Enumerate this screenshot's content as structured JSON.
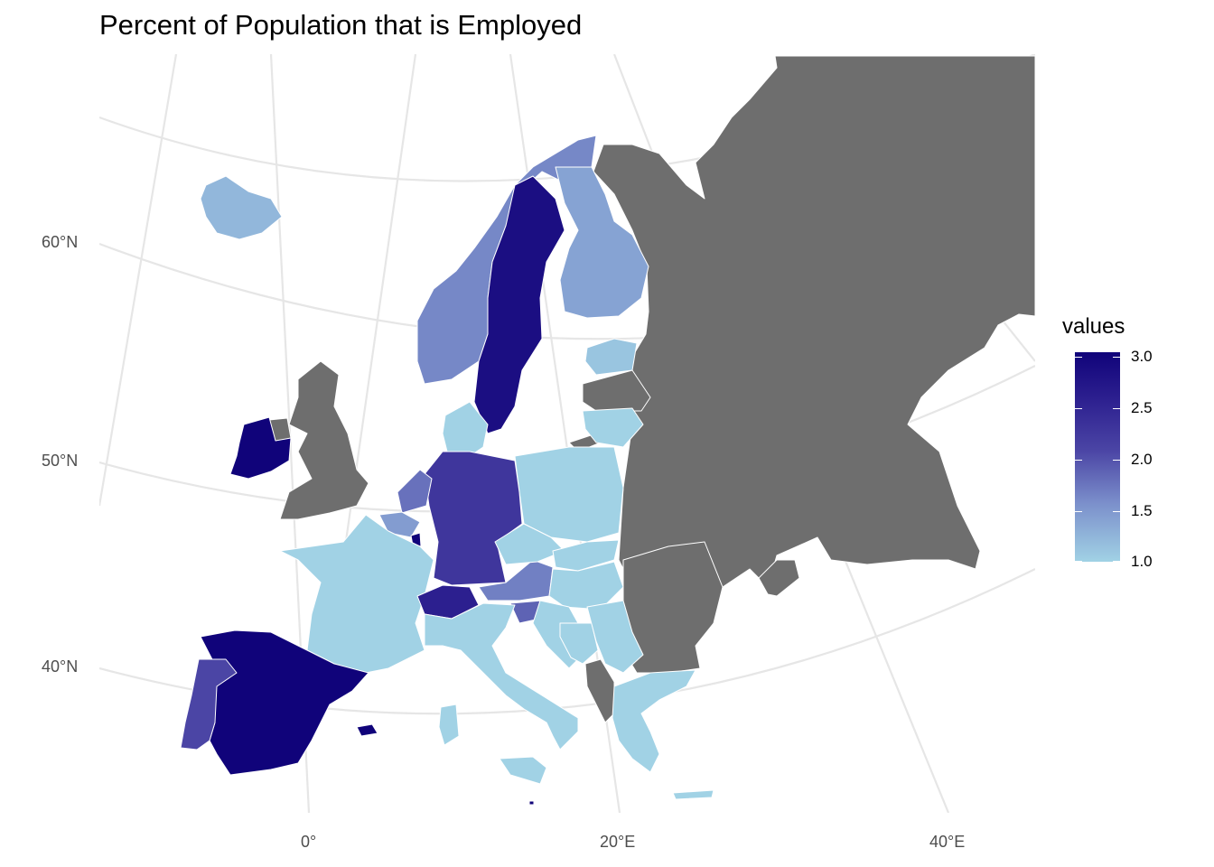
{
  "title": "Percent of Population that is Employed",
  "axes": {
    "lat_labels": [
      "60°N",
      "50°N",
      "40°N"
    ],
    "lon_labels": [
      "0°",
      "20°E",
      "40°E"
    ]
  },
  "legend": {
    "title": "values",
    "ticks": [
      "3.0",
      "2.5",
      "2.0",
      "1.5",
      "1.0"
    ],
    "range": [
      1.0,
      3.0
    ],
    "low_color": "#a1d2e5",
    "high_color": "#10037a"
  },
  "colors": {
    "no_data": "#6e6e6e",
    "graticule": "#e6e6e6",
    "border": "#ffffff"
  },
  "chart_data": {
    "type": "choropleth",
    "title": "Percent of Population that is Employed",
    "legend_title": "values",
    "scale": {
      "min": 1.0,
      "max": 3.0
    },
    "regions": [
      {
        "name": "Iceland",
        "value": 1.2
      },
      {
        "name": "Ireland",
        "value": 3.0
      },
      {
        "name": "Norway",
        "value": 1.55
      },
      {
        "name": "Sweden",
        "value": 2.8
      },
      {
        "name": "Finland",
        "value": 1.35
      },
      {
        "name": "Estonia",
        "value": 1.1
      },
      {
        "name": "Lithuania",
        "value": 1.0
      },
      {
        "name": "Denmark",
        "value": 1.0
      },
      {
        "name": "Netherlands",
        "value": 1.7
      },
      {
        "name": "Belgium",
        "value": 1.4
      },
      {
        "name": "Luxembourg",
        "value": 3.0
      },
      {
        "name": "Germany",
        "value": 2.2
      },
      {
        "name": "Poland",
        "value": 1.0
      },
      {
        "name": "France",
        "value": 1.0
      },
      {
        "name": "Switzerland",
        "value": 2.5
      },
      {
        "name": "Austria",
        "value": 1.6
      },
      {
        "name": "Slovenia",
        "value": 1.8
      },
      {
        "name": "Czechia",
        "value": 1.0
      },
      {
        "name": "Slovakia",
        "value": 1.0
      },
      {
        "name": "Hungary",
        "value": 1.0
      },
      {
        "name": "Croatia",
        "value": 1.0
      },
      {
        "name": "Bosnia",
        "value": 1.0
      },
      {
        "name": "Serbia",
        "value": 1.0
      },
      {
        "name": "Italy",
        "value": 1.0
      },
      {
        "name": "Spain",
        "value": 3.0
      },
      {
        "name": "Portugal",
        "value": 2.0
      },
      {
        "name": "Greece",
        "value": 1.0
      },
      {
        "name": "Malta",
        "value": 3.0
      }
    ]
  }
}
